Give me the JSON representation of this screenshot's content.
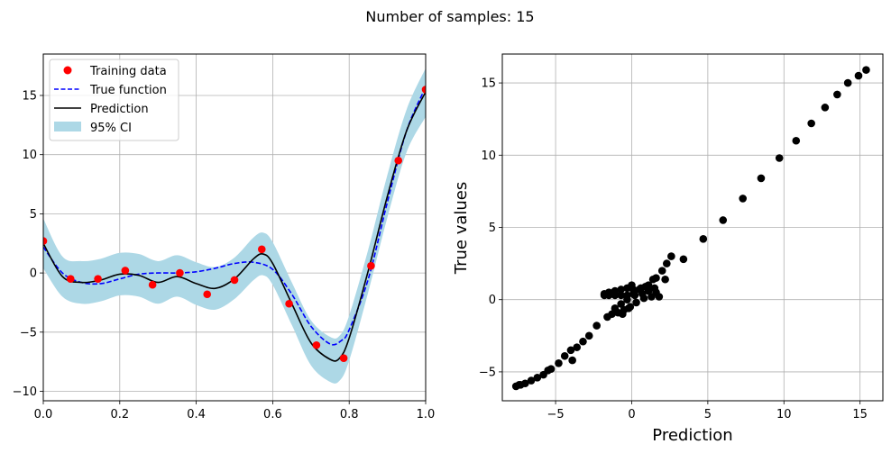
{
  "title": "Number of samples: 15",
  "colors": {
    "training": "#ff0000",
    "true_function": "#0000ff",
    "prediction": "#000000",
    "ci": "#add8e6",
    "grid": "#b0b0b0",
    "scatter": "#000000"
  },
  "chart_data": [
    {
      "type": "line",
      "title": "",
      "xlabel": "",
      "ylabel": "",
      "xlim": [
        0.0,
        1.0
      ],
      "ylim": [
        -10.8,
        18.5
      ],
      "xticks": [
        0.0,
        0.2,
        0.4,
        0.6,
        0.8,
        1.0
      ],
      "xtick_labels": [
        "0.0",
        "0.2",
        "0.4",
        "0.6",
        "0.8",
        "1.0"
      ],
      "yticks": [
        -10,
        -5,
        0,
        5,
        10,
        15
      ],
      "ytick_labels": [
        "−10",
        "−5",
        "0",
        "5",
        "10",
        "15"
      ],
      "grid": true,
      "legend_position": "top-left",
      "legend": [
        "Training data",
        "True function",
        "Prediction",
        "95% CI"
      ],
      "training_points": {
        "name": "Training data",
        "x": [
          0.0,
          0.0714,
          0.1429,
          0.2143,
          0.2857,
          0.3571,
          0.4286,
          0.5,
          0.5714,
          0.6429,
          0.7143,
          0.7857,
          0.8571,
          0.9286,
          1.0
        ],
        "y": [
          2.7,
          -0.5,
          -0.5,
          0.2,
          -1.0,
          0.0,
          -1.8,
          -0.6,
          2.0,
          -2.6,
          -6.1,
          -7.2,
          0.6,
          9.5,
          15.5
        ]
      },
      "true_function": {
        "name": "True function",
        "x": [
          0.0,
          0.05,
          0.1,
          0.15,
          0.2,
          0.25,
          0.3,
          0.35,
          0.4,
          0.45,
          0.5,
          0.55,
          0.6,
          0.65,
          0.7,
          0.75,
          0.78,
          0.8,
          0.85,
          0.9,
          0.95,
          1.0
        ],
        "y": [
          2.2,
          0.0,
          -0.8,
          -0.9,
          -0.5,
          -0.1,
          0.0,
          0.0,
          0.1,
          0.4,
          0.8,
          0.9,
          0.3,
          -1.8,
          -4.5,
          -6.0,
          -5.7,
          -4.8,
          -0.5,
          6.0,
          12.0,
          15.7
        ]
      },
      "prediction": {
        "name": "Prediction",
        "x": [
          0.0,
          0.05,
          0.1,
          0.15,
          0.2,
          0.25,
          0.3,
          0.35,
          0.4,
          0.45,
          0.5,
          0.55,
          0.575,
          0.6,
          0.65,
          0.7,
          0.75,
          0.775,
          0.8,
          0.85,
          0.9,
          0.95,
          1.0
        ],
        "y": [
          2.5,
          -0.3,
          -0.8,
          -0.6,
          -0.1,
          -0.2,
          -0.8,
          -0.3,
          -0.9,
          -1.3,
          -0.5,
          1.2,
          1.6,
          0.8,
          -2.6,
          -5.9,
          -7.3,
          -7.2,
          -5.5,
          0.2,
          6.5,
          12.0,
          15.3
        ]
      },
      "ci": {
        "name": "95% CI",
        "x": [
          0.0,
          0.05,
          0.1,
          0.15,
          0.2,
          0.25,
          0.3,
          0.35,
          0.4,
          0.45,
          0.5,
          0.55,
          0.575,
          0.6,
          0.65,
          0.7,
          0.75,
          0.775,
          0.8,
          0.85,
          0.9,
          0.95,
          1.0
        ],
        "lower": [
          0.4,
          -2.0,
          -2.6,
          -2.4,
          -1.9,
          -2.0,
          -2.6,
          -2.0,
          -2.7,
          -3.1,
          -2.2,
          -0.6,
          -0.2,
          -1.0,
          -4.4,
          -7.8,
          -9.2,
          -9.1,
          -7.4,
          -1.6,
          4.7,
          10.2,
          13.2
        ],
        "upper": [
          4.6,
          1.4,
          1.0,
          1.2,
          1.7,
          1.6,
          1.0,
          1.5,
          0.9,
          0.5,
          1.3,
          3.0,
          3.4,
          2.6,
          -0.8,
          -4.0,
          -5.4,
          -5.3,
          -3.6,
          2.0,
          8.3,
          13.8,
          17.3
        ]
      }
    },
    {
      "type": "scatter",
      "title": "",
      "xlabel": "Prediction",
      "ylabel": "True values",
      "xlim": [
        -8.5,
        16.5
      ],
      "ylim": [
        -7.0,
        17.0
      ],
      "xticks": [
        -5,
        0,
        5,
        10,
        15
      ],
      "xtick_labels": [
        "−5",
        "0",
        "5",
        "10",
        "15"
      ],
      "yticks": [
        -5,
        0,
        5,
        10,
        15
      ],
      "ytick_labels": [
        "−5",
        "0",
        "5",
        "10",
        "15"
      ],
      "grid": true,
      "x": [
        15.4,
        14.9,
        14.2,
        13.5,
        12.7,
        11.8,
        10.8,
        9.7,
        8.5,
        7.3,
        6.0,
        4.7,
        3.4,
        2.6,
        2.3,
        2.0,
        1.6,
        1.1,
        0.6,
        0.1,
        -0.3,
        -0.7,
        -1.1,
        -1.5,
        -1.8,
        -1.8,
        -1.5,
        -1.1,
        -0.7,
        -0.3,
        0.2,
        0.7,
        1.1,
        1.5,
        1.6,
        1.3,
        0.8,
        0.3,
        -0.1,
        -0.5,
        -0.9,
        -1.3,
        -1.1,
        -0.7,
        -0.3,
        0.1,
        0.5,
        0.9,
        1.4,
        1.8,
        2.2,
        -1.6,
        -2.3,
        -2.8,
        -3.2,
        -3.6,
        -4.0,
        -4.4,
        -4.8,
        -5.3,
        -5.8,
        -6.2,
        -6.6,
        -7.0,
        -7.3,
        -7.6,
        -0.2,
        0.0,
        -0.6,
        -3.9,
        -5.5,
        -7.4
      ],
      "y": [
        15.9,
        15.5,
        15.0,
        14.2,
        13.3,
        12.2,
        11.0,
        9.8,
        8.4,
        7.0,
        5.5,
        4.2,
        2.8,
        3.0,
        2.5,
        2.0,
        1.5,
        1.0,
        0.8,
        0.7,
        0.8,
        0.7,
        0.6,
        0.5,
        0.4,
        0.3,
        0.3,
        0.3,
        0.3,
        0.3,
        0.3,
        0.4,
        0.6,
        0.8,
        0.5,
        0.2,
        0.1,
        -0.2,
        -0.5,
        -0.7,
        -0.9,
        -1.0,
        -0.6,
        -0.3,
        0.0,
        0.4,
        0.7,
        0.9,
        1.4,
        0.2,
        1.4,
        -1.2,
        -1.8,
        -2.5,
        -2.9,
        -3.3,
        -3.5,
        -3.9,
        -4.4,
        -4.8,
        -5.2,
        -5.4,
        -5.6,
        -5.8,
        -5.9,
        -6.0,
        -0.6,
        1.0,
        -1.0,
        -4.2,
        -4.9,
        -5.9
      ]
    }
  ]
}
